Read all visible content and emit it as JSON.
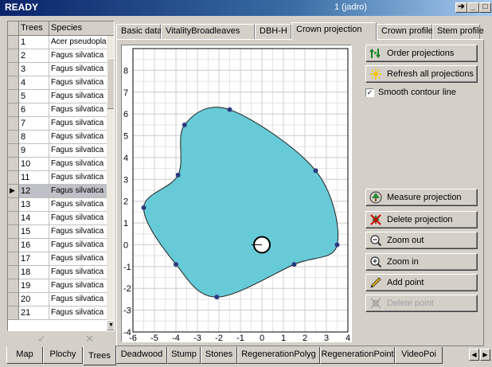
{
  "window": {
    "status": "READY",
    "center": "1 (jadro)"
  },
  "grid": {
    "headers": [
      "Trees",
      "Species"
    ],
    "rows": [
      {
        "num": "1",
        "species": "Acer pseudopla"
      },
      {
        "num": "2",
        "species": "Fagus silvatica"
      },
      {
        "num": "3",
        "species": "Fagus silvatica"
      },
      {
        "num": "4",
        "species": "Fagus silvatica"
      },
      {
        "num": "5",
        "species": "Fagus silvatica"
      },
      {
        "num": "6",
        "species": "Fagus silvatica"
      },
      {
        "num": "7",
        "species": "Fagus silvatica"
      },
      {
        "num": "8",
        "species": "Fagus silvatica"
      },
      {
        "num": "9",
        "species": "Fagus silvatica"
      },
      {
        "num": "10",
        "species": "Fagus silvatica"
      },
      {
        "num": "11",
        "species": "Fagus silvatica"
      },
      {
        "num": "12",
        "species": "Fagus silvatica"
      },
      {
        "num": "13",
        "species": "Fagus silvatica"
      },
      {
        "num": "14",
        "species": "Fagus silvatica"
      },
      {
        "num": "15",
        "species": "Fagus silvatica"
      },
      {
        "num": "16",
        "species": "Fagus silvatica"
      },
      {
        "num": "17",
        "species": "Fagus silvatica"
      },
      {
        "num": "18",
        "species": "Fagus silvatica"
      },
      {
        "num": "19",
        "species": "Fagus silvatica"
      },
      {
        "num": "20",
        "species": "Fagus silvatica"
      },
      {
        "num": "21",
        "species": "Fagus silvatica"
      }
    ],
    "selected_index": 11
  },
  "tabs_top": [
    "Basic data",
    "VitalityBroadleaves",
    "DBH-H",
    "Crown projection",
    "Crown profile",
    "Stem profile"
  ],
  "active_top_tab": "Crown projection",
  "buttons": {
    "order": "Order projections",
    "refresh": "Refresh all projections",
    "smooth": "Smooth contour line",
    "measure": "Measure projection",
    "delete_proj": "Delete projection",
    "zoom_out": "Zoom out",
    "zoom_in": "Zoom in",
    "add_point": "Add point",
    "delete_point": "Delete point"
  },
  "smooth_checked": true,
  "tabs_bottom": [
    "Map",
    "Plochy",
    "Trees",
    "Deadwood",
    "Stump",
    "Stones",
    "RegenerationPolyg",
    "RegenerationPoint",
    "VideoPoi"
  ],
  "active_bottom_tab": "Trees",
  "chart_data": {
    "type": "scatter",
    "x_ticks": [
      "-6",
      "-5",
      "-4",
      "-3",
      "-2",
      "-1",
      "0",
      "1",
      "2",
      "3",
      "4"
    ],
    "y_ticks": [
      "8",
      "7",
      "6",
      "5",
      "4",
      "3",
      "2",
      "1",
      "0",
      "-1",
      "-2",
      "-3",
      "-4"
    ],
    "xlim": [
      -6,
      4
    ],
    "ylim": [
      -4,
      9
    ],
    "grid": true,
    "fill_color": "#67cad7",
    "point_color": "#2b3a80",
    "points": [
      {
        "x": -1.5,
        "y": 6.2
      },
      {
        "x": 2.5,
        "y": 3.4
      },
      {
        "x": 3.5,
        "y": 0.0
      },
      {
        "x": 1.5,
        "y": -0.9
      },
      {
        "x": -2.1,
        "y": -2.4
      },
      {
        "x": -4.0,
        "y": -0.9
      },
      {
        "x": -5.5,
        "y": 1.7
      },
      {
        "x": -3.9,
        "y": 3.2
      },
      {
        "x": -3.6,
        "y": 5.5
      }
    ],
    "stem_center": {
      "x": 0,
      "y": 0
    }
  }
}
